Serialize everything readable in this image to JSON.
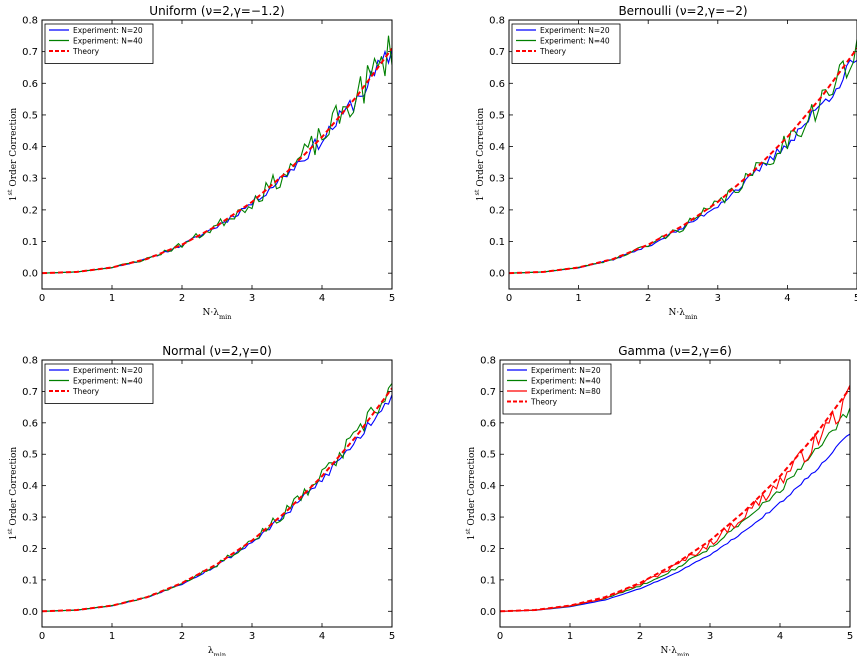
{
  "chart_data": [
    {
      "type": "line",
      "title": "Uniform (ν=2,γ=−1.2)",
      "xlabel": "N·λmin",
      "ylabel": "1st Order Correction",
      "xlim": [
        0,
        5
      ],
      "ylim": [
        -0.05,
        0.8
      ],
      "xticks": [
        "0",
        "1",
        "2",
        "3",
        "4",
        "5"
      ],
      "yticks": [
        "0.0",
        "0.1",
        "0.2",
        "0.3",
        "0.4",
        "0.5",
        "0.6",
        "0.7",
        "0.8"
      ],
      "legend_position": "top-left",
      "series": [
        {
          "name": "Experiment: N=20",
          "color": "#0000ff",
          "style": "solid",
          "theory_scale": 0.985,
          "noise": 0.012,
          "seed": 11
        },
        {
          "name": "Experiment: N=40",
          "color": "#008000",
          "style": "solid",
          "theory_scale": 1.0,
          "noise": 0.022,
          "seed": 23
        },
        {
          "name": "Theory",
          "color": "#ff0000",
          "style": "dashed",
          "theory_scale": 1.0,
          "noise": 0,
          "seed": 0
        }
      ]
    },
    {
      "type": "line",
      "title": "Bernoulli (ν=2,γ=−2)",
      "xlabel": "N·λmin",
      "ylabel": "1st Order Correction",
      "xlim": [
        0,
        5
      ],
      "ylim": [
        -0.05,
        0.8
      ],
      "xticks": [
        "0",
        "1",
        "2",
        "3",
        "4",
        "5"
      ],
      "yticks": [
        "0.0",
        "0.1",
        "0.2",
        "0.3",
        "0.4",
        "0.5",
        "0.6",
        "0.7",
        "0.8"
      ],
      "legend_position": "top-left",
      "series": [
        {
          "name": "Experiment: N=20",
          "color": "#0000ff",
          "style": "solid",
          "theory_scale": 0.955,
          "noise": 0.009,
          "seed": 37
        },
        {
          "name": "Experiment: N=40",
          "color": "#008000",
          "style": "solid",
          "theory_scale": 0.975,
          "noise": 0.018,
          "seed": 41
        },
        {
          "name": "Theory",
          "color": "#ff0000",
          "style": "dashed",
          "theory_scale": 1.0,
          "noise": 0,
          "seed": 0
        }
      ]
    },
    {
      "type": "line",
      "title": "Normal (ν=2,γ=0)",
      "xlabel": "λmin",
      "ylabel": "1st Order Correction",
      "xlim": [
        0,
        5
      ],
      "ylim": [
        -0.05,
        0.8
      ],
      "xticks": [
        "0",
        "1",
        "2",
        "3",
        "4",
        "5"
      ],
      "yticks": [
        "0.0",
        "0.1",
        "0.2",
        "0.3",
        "0.4",
        "0.5",
        "0.6",
        "0.7",
        "0.8"
      ],
      "legend_position": "top-left",
      "series": [
        {
          "name": "Experiment: N=20",
          "color": "#0000ff",
          "style": "solid",
          "theory_scale": 0.975,
          "noise": 0.007,
          "seed": 53
        },
        {
          "name": "Experiment: N=40",
          "color": "#008000",
          "style": "solid",
          "theory_scale": 1.0,
          "noise": 0.012,
          "seed": 67
        },
        {
          "name": "Theory",
          "color": "#ff0000",
          "style": "dashed",
          "theory_scale": 1.0,
          "noise": 0,
          "seed": 0
        }
      ]
    },
    {
      "type": "line",
      "title": "Gamma (ν=2,γ=6)",
      "xlabel": "N·λmin",
      "ylabel": "1st Order Correction",
      "xlim": [
        0,
        5
      ],
      "ylim": [
        -0.05,
        0.8
      ],
      "xticks": [
        "0",
        "1",
        "2",
        "3",
        "4",
        "5"
      ],
      "yticks": [
        "0.0",
        "0.1",
        "0.2",
        "0.3",
        "0.4",
        "0.5",
        "0.6",
        "0.7",
        "0.8"
      ],
      "legend_position": "top-left",
      "series": [
        {
          "name": "Experiment: N=20",
          "color": "#0000ff",
          "style": "solid",
          "theory_scale": 0.8,
          "noise": 0.002,
          "seed": 71
        },
        {
          "name": "Experiment: N=40",
          "color": "#008000",
          "style": "solid",
          "theory_scale": 0.9,
          "noise": 0.006,
          "seed": 83
        },
        {
          "name": "Experiment: N=80",
          "color": "#ff0000",
          "style": "solid",
          "theory_scale": 0.96,
          "noise": 0.012,
          "seed": 97
        },
        {
          "name": "Theory",
          "color": "#ff0000",
          "style": "dashed",
          "theory_scale": 1.0,
          "noise": 0,
          "seed": 0
        }
      ]
    }
  ],
  "theory_curve": {
    "x": [
      0,
      0.5,
      1,
      1.5,
      2,
      2.5,
      3,
      3.5,
      4,
      4.5,
      5
    ],
    "y": [
      0.0,
      0.004,
      0.018,
      0.045,
      0.09,
      0.15,
      0.225,
      0.32,
      0.43,
      0.56,
      0.71
    ]
  }
}
